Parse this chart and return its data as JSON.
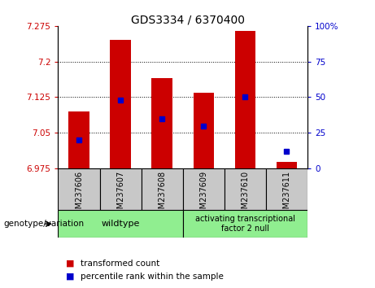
{
  "title": "GDS3334 / 6370400",
  "samples": [
    "GSM237606",
    "GSM237607",
    "GSM237608",
    "GSM237609",
    "GSM237610",
    "GSM237611"
  ],
  "transformed_counts": [
    7.095,
    7.245,
    7.165,
    7.135,
    7.265,
    6.988
  ],
  "percentile_ranks": [
    20,
    48,
    35,
    30,
    50,
    12
  ],
  "y_min": 6.975,
  "y_max": 7.275,
  "y_ticks": [
    6.975,
    7.05,
    7.125,
    7.2,
    7.275
  ],
  "y_tick_labels": [
    "6.975",
    "7.05",
    "7.125",
    "7.2",
    "7.275"
  ],
  "y2_ticks": [
    0,
    25,
    50,
    75,
    100
  ],
  "y2_tick_labels": [
    "0",
    "25",
    "50",
    "75",
    "100%"
  ],
  "bar_color": "#cc0000",
  "marker_color": "#0000cc",
  "group1_label": "wildtype",
  "group2_label": "activating transcriptional\nfactor 2 null",
  "group_color": "#90ee90",
  "group_label_text": "genotype/variation",
  "legend_items": [
    {
      "color": "#cc0000",
      "label": "transformed count"
    },
    {
      "color": "#0000cc",
      "label": "percentile rank within the sample"
    }
  ],
  "tick_color_left": "#cc0000",
  "tick_color_right": "#0000cc",
  "bg_color": "#c8c8c8",
  "plot_bg": "#ffffff"
}
